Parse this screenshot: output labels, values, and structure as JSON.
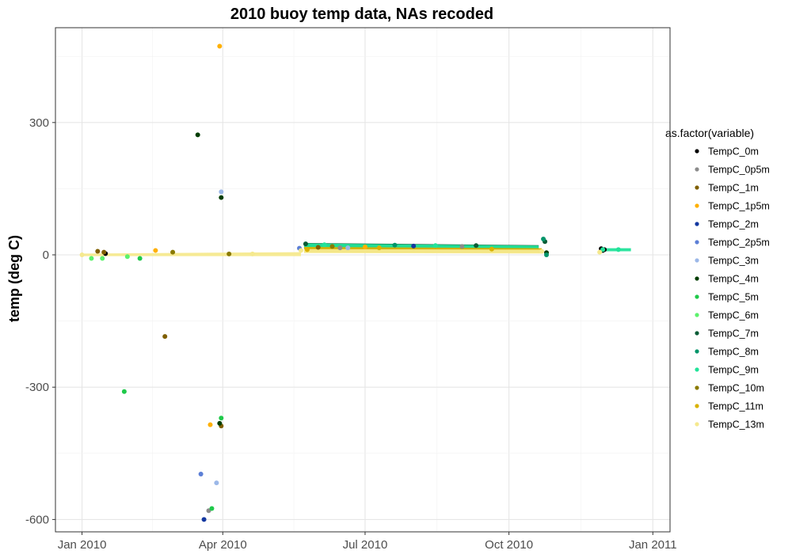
{
  "chart_data": {
    "type": "scatter",
    "title": "2010 buoy temp data, NAs recoded",
    "xlabel": "",
    "ylabel": "temp (deg C)",
    "x_axis_type": "date",
    "xlim": [
      "2009-12-15",
      "2011-01-12"
    ],
    "ylim": [
      -628,
      515
    ],
    "x_ticks": [
      {
        "value": "2010-01-01",
        "label": "Jan 2010"
      },
      {
        "value": "2010-04-01",
        "label": "Apr 2010"
      },
      {
        "value": "2010-07-01",
        "label": "Jul 2010"
      },
      {
        "value": "2010-10-01",
        "label": "Oct 2010"
      },
      {
        "value": "2011-01-01",
        "label": "Jan 2011"
      }
    ],
    "y_ticks": [
      {
        "value": 300,
        "label": "300"
      },
      {
        "value": 0,
        "label": "0"
      },
      {
        "value": -300,
        "label": "-300"
      },
      {
        "value": -600,
        "label": "-600"
      }
    ],
    "grid": true,
    "legend": {
      "title": "as.factor(variable)",
      "position": "right"
    },
    "series": [
      {
        "name": "TempC_0m",
        "color": "#000000",
        "points": [
          [
            "2010-11-29",
            14
          ],
          [
            "2010-11-30",
            10
          ],
          [
            "2010-12-01",
            12
          ],
          [
            "2010-01-16",
            3
          ]
        ]
      },
      {
        "name": "TempC_0p5m",
        "color": "#8c8c8c",
        "points": [
          [
            "2010-03-23",
            -580
          ],
          [
            "2010-06-15",
            16
          ],
          [
            "2010-09-01",
            19
          ]
        ]
      },
      {
        "name": "TempC_1m",
        "color": "#7f5f00",
        "points": [
          [
            "2010-01-11",
            8
          ],
          [
            "2010-01-15",
            6
          ],
          [
            "2010-02-23",
            -185
          ],
          [
            "2010-03-31",
            -388
          ],
          [
            "2010-06-01",
            17
          ]
        ]
      },
      {
        "name": "TempC_1p5m",
        "color": "#ffb000",
        "points": [
          [
            "2010-03-30",
            473
          ],
          [
            "2010-03-24",
            -385
          ],
          [
            "2010-02-17",
            10
          ],
          [
            "2010-07-01",
            18
          ]
        ]
      },
      {
        "name": "TempC_2m",
        "color": "#1438a0",
        "points": [
          [
            "2010-03-20",
            -600
          ],
          [
            "2010-08-01",
            20
          ]
        ]
      },
      {
        "name": "TempC_2p5m",
        "color": "#5c7fd6",
        "points": [
          [
            "2010-03-18",
            -497
          ],
          [
            "2010-05-20",
            15
          ]
        ]
      },
      {
        "name": "TempC_3m",
        "color": "#9cb8e8",
        "points": [
          [
            "2010-03-31",
            143
          ],
          [
            "2010-03-28",
            -517
          ],
          [
            "2010-06-20",
            16
          ]
        ]
      },
      {
        "name": "TempC_4m",
        "color": "#003d00",
        "points": [
          [
            "2010-03-16",
            272
          ],
          [
            "2010-03-31",
            130
          ],
          [
            "2010-03-30",
            -382
          ],
          [
            "2010-10-25",
            5
          ]
        ]
      },
      {
        "name": "TempC_5m",
        "color": "#1fc94a",
        "points": [
          [
            "2010-03-25",
            -575
          ],
          [
            "2010-03-31",
            -370
          ],
          [
            "2010-01-28",
            -310
          ],
          [
            "2010-02-07",
            -8
          ]
        ]
      },
      {
        "name": "TempC_6m",
        "color": "#5cf26c",
        "points": [
          [
            "2010-01-07",
            -8
          ],
          [
            "2010-01-14",
            -8
          ],
          [
            "2010-01-30",
            -4
          ]
        ]
      },
      {
        "name": "TempC_7m",
        "color": "#0a5c36",
        "points": [
          [
            "2010-05-24",
            25
          ],
          [
            "2010-09-10",
            21
          ],
          [
            "2010-10-24",
            30
          ]
        ]
      },
      {
        "name": "TempC_8m",
        "color": "#00956a",
        "points": [
          [
            "2010-10-23",
            36
          ],
          [
            "2010-10-25",
            0
          ],
          [
            "2010-07-20",
            22
          ]
        ]
      },
      {
        "name": "TempC_9m",
        "color": "#22e39a",
        "points": [
          [
            "2010-06-05",
            23
          ],
          [
            "2010-08-15",
            21
          ],
          [
            "2010-11-30",
            12
          ],
          [
            "2010-12-10",
            12
          ]
        ]
      },
      {
        "name": "TempC_10m",
        "color": "#8a7a00",
        "points": [
          [
            "2010-02-28",
            6
          ],
          [
            "2010-04-05",
            2
          ],
          [
            "2010-06-10",
            19
          ]
        ]
      },
      {
        "name": "TempC_11m",
        "color": "#d9b200",
        "points": [
          [
            "2010-07-10",
            16
          ],
          [
            "2010-09-20",
            13
          ],
          [
            "2010-05-25",
            12
          ]
        ]
      },
      {
        "name": "TempC_13m",
        "color": "#f5e98e",
        "points": [
          [
            "2010-01-01",
            0
          ],
          [
            "2010-04-20",
            2
          ],
          [
            "2010-05-21",
            10
          ],
          [
            "2010-10-22",
            8
          ],
          [
            "2010-11-28",
            6
          ]
        ]
      }
    ]
  }
}
